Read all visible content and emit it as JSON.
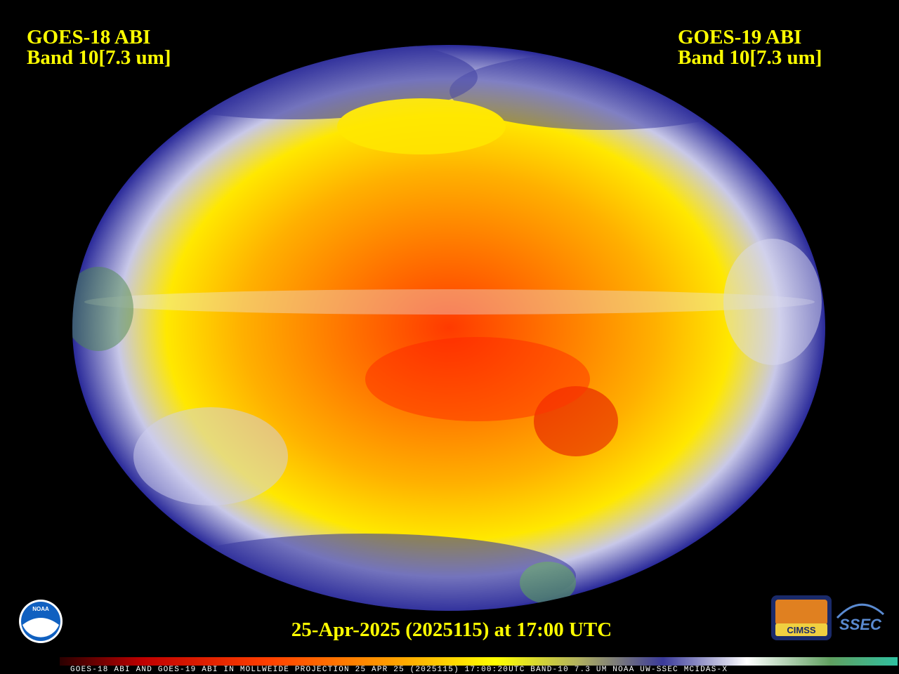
{
  "header": {
    "left": {
      "line1": "GOES-18 ABI",
      "line2": "Band 10[7.3 um]"
    },
    "right": {
      "line1": "GOES-19 ABI",
      "line2": "Band 10[7.3 um]"
    }
  },
  "timestamp": "25-Apr-2025 (2025115) at 17:00 UTC",
  "footer": "GOES-18 ABI AND GOES-19 ABI IN MOLLWEIDE PROJECTION 25 APR 25 (2025115) 17:00:20UTC BAND-10 7.3 UM NOAA UW-SSEC MCIDAS-X",
  "logos": {
    "noaa": "NOAA",
    "cimss": "CIMSS",
    "ssec": "SSEC"
  }
}
